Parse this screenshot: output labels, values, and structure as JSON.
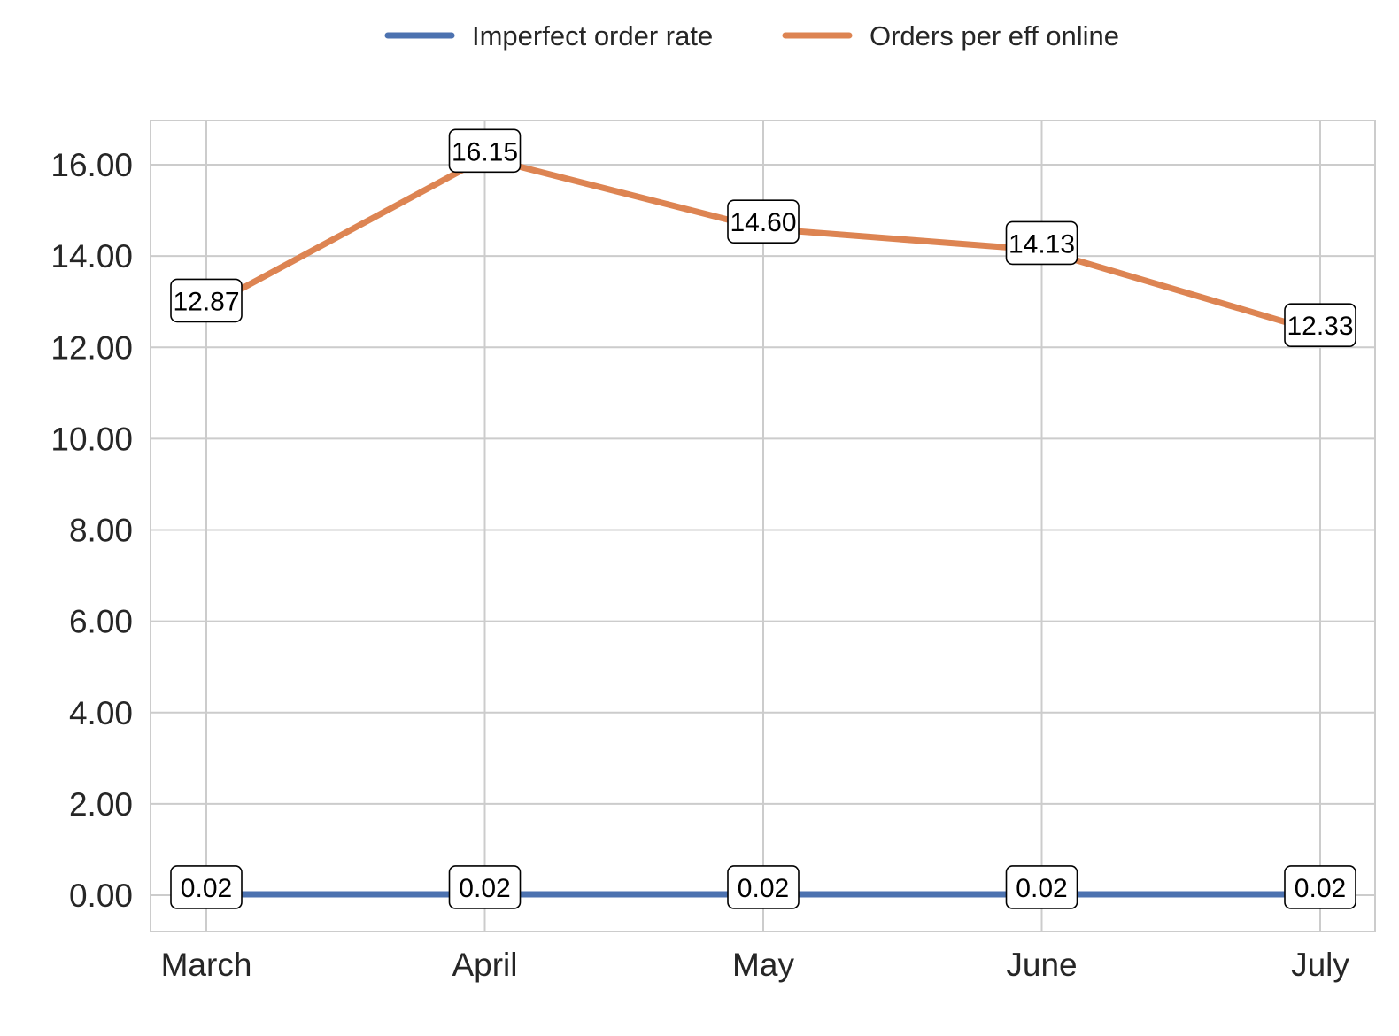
{
  "chart_data": {
    "type": "line",
    "categories": [
      "March",
      "April",
      "May",
      "June",
      "July"
    ],
    "series": [
      {
        "name": "Imperfect order rate",
        "color": "#4c72b0",
        "values": [
          0.02,
          0.02,
          0.02,
          0.02,
          0.02
        ],
        "labels": [
          "0.02",
          "0.02",
          "0.02",
          "0.02",
          "0.02"
        ]
      },
      {
        "name": "Orders per eff online",
        "color": "#dd8452",
        "values": [
          12.87,
          16.15,
          14.6,
          14.13,
          12.33
        ],
        "labels": [
          "12.87",
          "16.15",
          "14.60",
          "14.13",
          "12.33"
        ]
      }
    ],
    "yticks": [
      "0.00",
      "2.00",
      "4.00",
      "6.00",
      "8.00",
      "10.00",
      "12.00",
      "14.00",
      "16.00"
    ],
    "ylim": [
      -0.8,
      17.0
    ],
    "grid": true,
    "legend_position": "top-center"
  }
}
